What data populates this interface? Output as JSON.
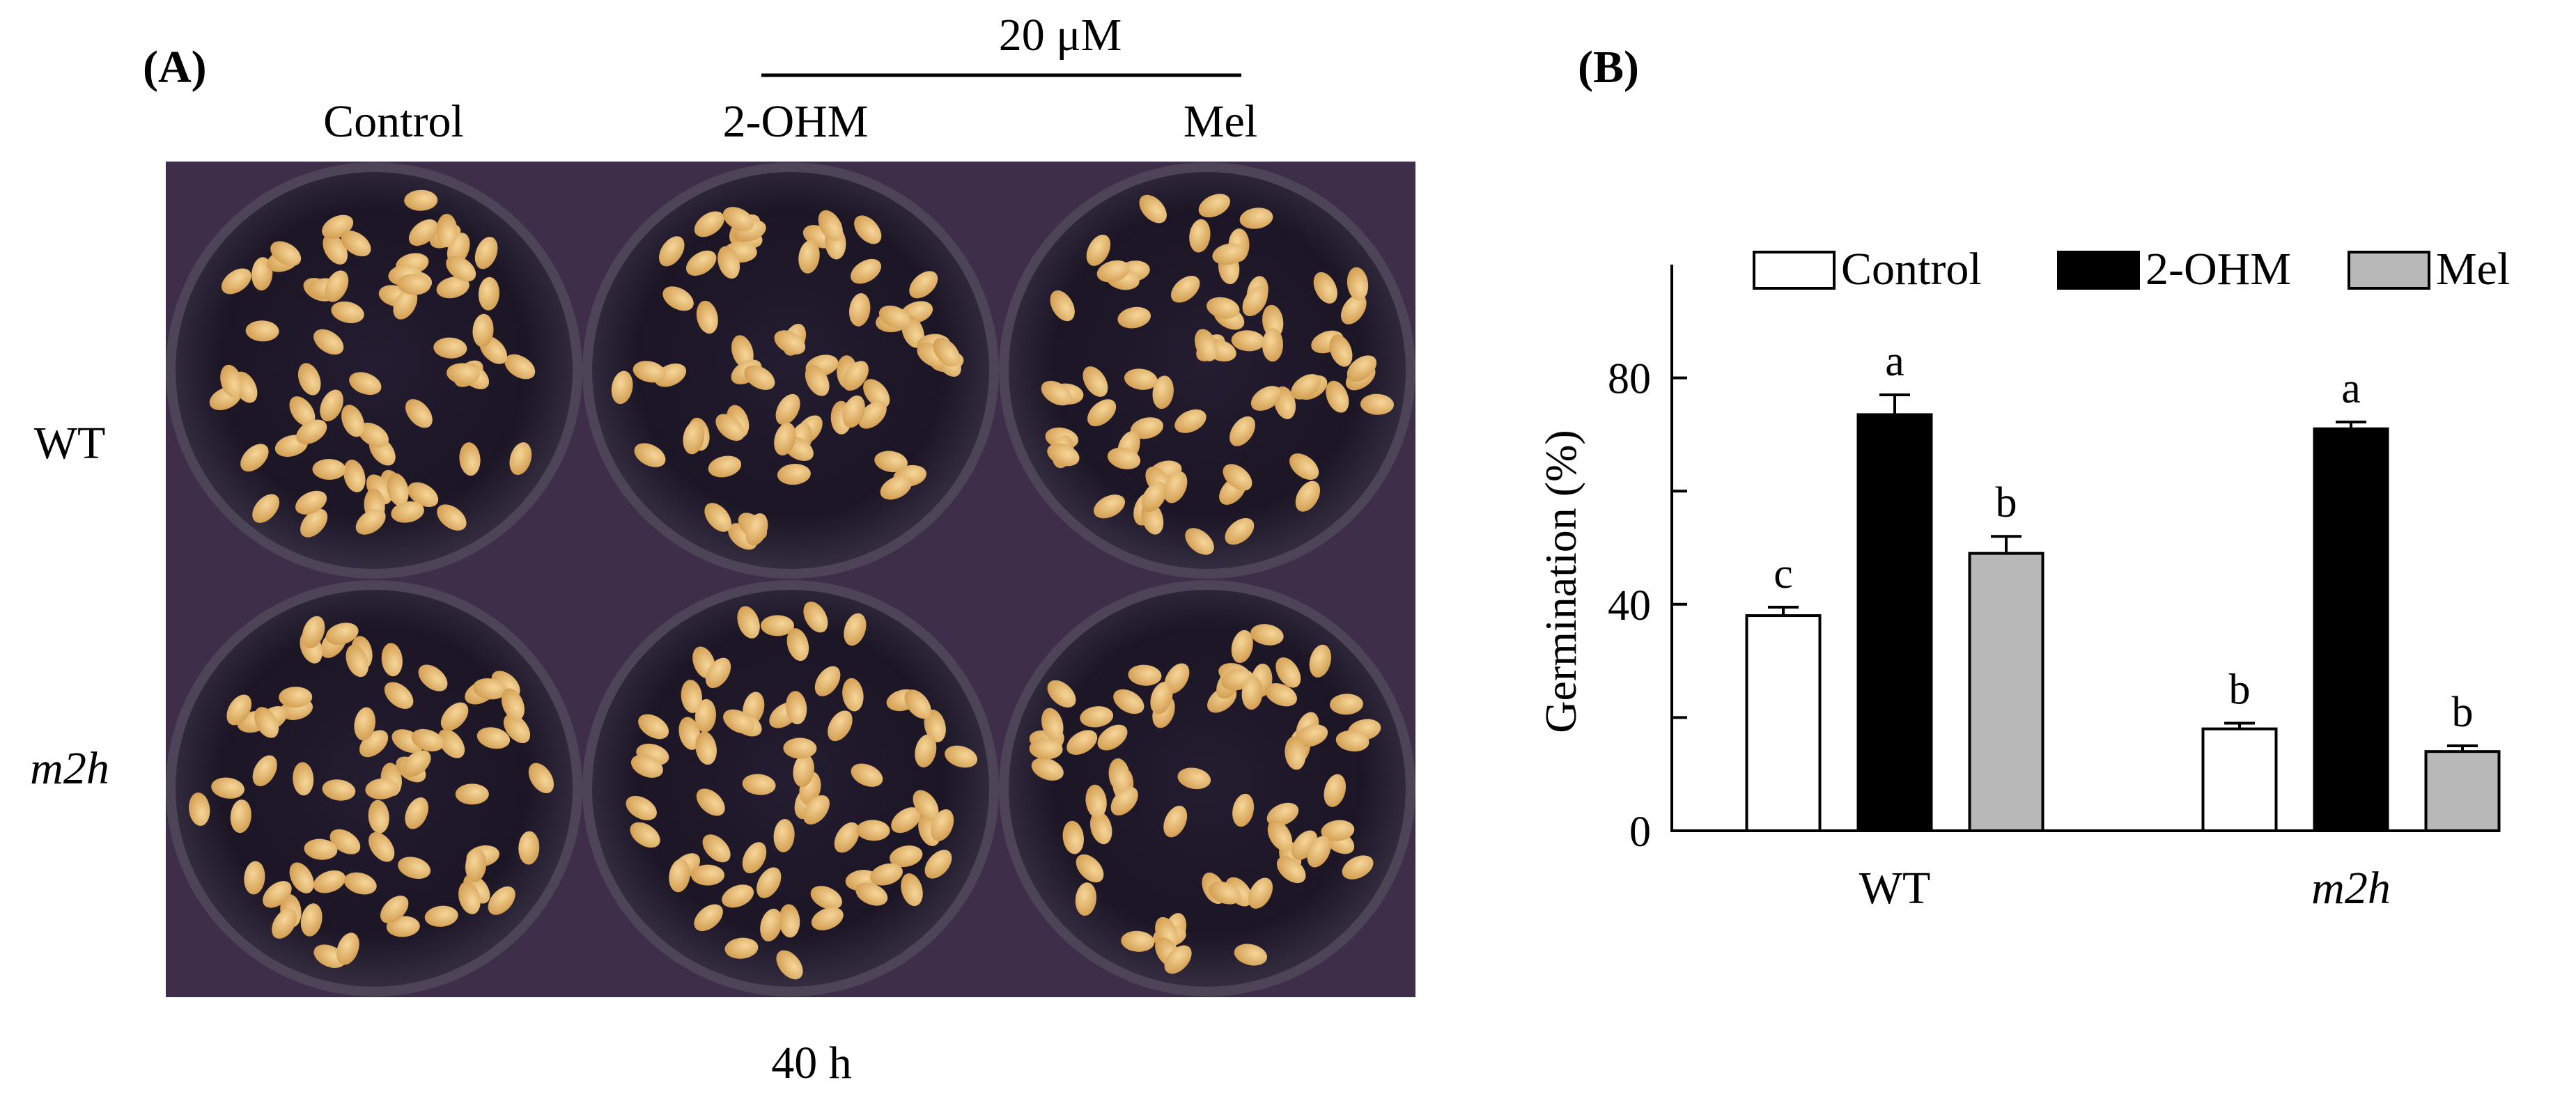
{
  "panel_a": {
    "label": "(A)",
    "concentration": "20 μM",
    "columns": [
      "Control",
      "2-OHM",
      "Mel"
    ],
    "rows": [
      "WT",
      "m2h"
    ],
    "footer": "40 h",
    "seeds_per_dish": 64
  },
  "panel_b": {
    "label": "(B)"
  },
  "colors": {
    "control": "#ffffff",
    "ohm": "#000000",
    "mel": "#b8b8b8",
    "seed": "#e3b46c",
    "dish": "#1c1726",
    "photo_bg": "#3e2e4a"
  },
  "chart_data": {
    "type": "bar",
    "title": "",
    "xlabel": "",
    "ylabel": "Germination (%)",
    "categories": [
      "WT",
      "m2h"
    ],
    "ylim": [
      0,
      100
    ],
    "yticks": [
      0,
      40,
      80
    ],
    "legend_position": "top",
    "series": [
      {
        "name": "Control",
        "values": [
          38,
          18
        ],
        "errors": [
          1.5,
          1
        ],
        "letters": [
          "c",
          "b"
        ]
      },
      {
        "name": "2-OHM",
        "values": [
          73.5,
          71
        ],
        "errors": [
          3.5,
          1.2
        ],
        "letters": [
          "a",
          "a"
        ]
      },
      {
        "name": "Mel",
        "values": [
          49,
          14
        ],
        "errors": [
          3,
          1
        ],
        "letters": [
          "b",
          "b"
        ]
      }
    ]
  }
}
